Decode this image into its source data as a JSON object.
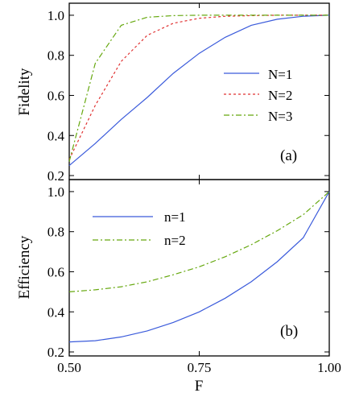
{
  "chart_data": [
    {
      "type": "line",
      "panel_label": "(a)",
      "ylabel": "Fidelity",
      "xlabel": "",
      "xlim": [
        0.5,
        1.0
      ],
      "ylim": [
        0.18,
        1.06
      ],
      "yticks": [
        "0.2",
        "0.4",
        "0.6",
        "0.8",
        "1.0"
      ],
      "ytick_values": [
        0.2,
        0.4,
        0.6,
        0.8,
        1.0
      ],
      "legend_position": "center-right",
      "x": [
        0.5,
        0.55,
        0.6,
        0.65,
        0.7,
        0.75,
        0.8,
        0.85,
        0.9,
        0.95,
        1.0
      ],
      "series": [
        {
          "name": "N=1",
          "color": "#3b5bdb",
          "dash": "solid",
          "values": [
            0.25,
            0.36,
            0.48,
            0.59,
            0.71,
            0.81,
            0.89,
            0.95,
            0.98,
            0.995,
            1.0
          ]
        },
        {
          "name": "N=2",
          "color": "#e03131",
          "dash": "3,3",
          "values": [
            0.28,
            0.55,
            0.77,
            0.9,
            0.96,
            0.985,
            0.995,
            0.998,
            1.0,
            1.0,
            1.0
          ]
        },
        {
          "name": "N=3",
          "color": "#66a80f",
          "dash": "7,3,2,3",
          "values": [
            0.27,
            0.76,
            0.95,
            0.99,
            0.998,
            1.0,
            1.0,
            1.0,
            1.0,
            1.0,
            1.0
          ]
        }
      ]
    },
    {
      "type": "line",
      "panel_label": "(b)",
      "ylabel": "Efficiency",
      "xlabel": "F",
      "xlim": [
        0.5,
        1.0
      ],
      "ylim": [
        0.18,
        1.06
      ],
      "xticks": [
        "0.50",
        "0.75",
        "1.00"
      ],
      "xtick_values": [
        0.5,
        0.75,
        1.0
      ],
      "yticks": [
        "0.2",
        "0.4",
        "0.6",
        "0.8",
        "1.0"
      ],
      "ytick_values": [
        0.2,
        0.4,
        0.6,
        0.8,
        1.0
      ],
      "legend_position": "top-left",
      "x": [
        0.5,
        0.55,
        0.6,
        0.65,
        0.7,
        0.75,
        0.8,
        0.85,
        0.9,
        0.95,
        1.0
      ],
      "series": [
        {
          "name": "n=1",
          "color": "#3b5bdb",
          "dash": "solid",
          "values": [
            0.25,
            0.256,
            0.275,
            0.305,
            0.347,
            0.4,
            0.468,
            0.55,
            0.65,
            0.77,
            1.0
          ]
        },
        {
          "name": "n=2",
          "color": "#66a80f",
          "dash": "7,3,2,3",
          "values": [
            0.5,
            0.51,
            0.525,
            0.55,
            0.585,
            0.625,
            0.675,
            0.735,
            0.805,
            0.885,
            1.0
          ]
        }
      ]
    }
  ]
}
